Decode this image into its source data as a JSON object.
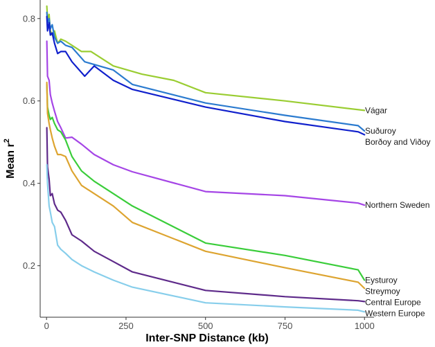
{
  "chart_data": {
    "type": "line",
    "xlabel": "Inter-SNP Distance (kb)",
    "ylabel": "Mean r",
    "ylabel_sup": "2",
    "xlim": [
      -20,
      1030
    ],
    "ylim": [
      0.075,
      0.845
    ],
    "x_ticks": [
      0,
      250,
      500,
      750,
      1000
    ],
    "x_tick_labels": [
      "0",
      "250",
      "500",
      "750",
      "1000"
    ],
    "y_ticks": [
      0.2,
      0.4,
      0.6,
      0.8
    ],
    "y_tick_labels": [
      "0.2",
      "0.4",
      "0.6",
      "0.8"
    ],
    "grid": false,
    "legend": "direct labels at line ends",
    "series": [
      {
        "name": "Vágar",
        "color": "#9acd32",
        "points": [
          [
            1,
            0.83
          ],
          [
            3,
            0.8
          ],
          [
            8,
            0.81
          ],
          [
            12,
            0.77
          ],
          [
            18,
            0.76
          ],
          [
            25,
            0.77
          ],
          [
            35,
            0.74
          ],
          [
            45,
            0.75
          ],
          [
            60,
            0.745
          ],
          [
            80,
            0.735
          ],
          [
            110,
            0.72
          ],
          [
            140,
            0.72
          ],
          [
            210,
            0.685
          ],
          [
            300,
            0.665
          ],
          [
            400,
            0.65
          ],
          [
            500,
            0.62
          ],
          [
            750,
            0.6
          ],
          [
            1000,
            0.577
          ]
        ]
      },
      {
        "name": "Suðuroy",
        "color": "#2b7bcf",
        "points": [
          [
            1,
            0.815
          ],
          [
            3,
            0.79
          ],
          [
            8,
            0.8
          ],
          [
            12,
            0.775
          ],
          [
            18,
            0.785
          ],
          [
            25,
            0.755
          ],
          [
            35,
            0.74
          ],
          [
            45,
            0.745
          ],
          [
            60,
            0.735
          ],
          [
            80,
            0.73
          ],
          [
            120,
            0.695
          ],
          [
            210,
            0.675
          ],
          [
            270,
            0.64
          ],
          [
            500,
            0.595
          ],
          [
            750,
            0.565
          ],
          [
            980,
            0.54
          ],
          [
            1000,
            0.527
          ]
        ]
      },
      {
        "name": "Borðoy and Viðoy",
        "color": "#1020cc",
        "points": [
          [
            1,
            0.805
          ],
          [
            3,
            0.77
          ],
          [
            8,
            0.79
          ],
          [
            12,
            0.76
          ],
          [
            18,
            0.765
          ],
          [
            25,
            0.74
          ],
          [
            35,
            0.715
          ],
          [
            45,
            0.72
          ],
          [
            60,
            0.72
          ],
          [
            80,
            0.695
          ],
          [
            120,
            0.66
          ],
          [
            150,
            0.685
          ],
          [
            210,
            0.65
          ],
          [
            270,
            0.628
          ],
          [
            500,
            0.585
          ],
          [
            750,
            0.55
          ],
          [
            980,
            0.525
          ],
          [
            1000,
            0.518
          ]
        ]
      },
      {
        "name": "Northern Sweden",
        "color": "#a545e6",
        "points": [
          [
            1,
            0.745
          ],
          [
            3,
            0.66
          ],
          [
            8,
            0.65
          ],
          [
            12,
            0.615
          ],
          [
            18,
            0.595
          ],
          [
            25,
            0.575
          ],
          [
            35,
            0.55
          ],
          [
            45,
            0.535
          ],
          [
            60,
            0.51
          ],
          [
            80,
            0.512
          ],
          [
            110,
            0.495
          ],
          [
            150,
            0.47
          ],
          [
            210,
            0.445
          ],
          [
            270,
            0.428
          ],
          [
            500,
            0.38
          ],
          [
            750,
            0.37
          ],
          [
            980,
            0.352
          ],
          [
            1000,
            0.347
          ]
        ]
      },
      {
        "name": "Eysturoy",
        "color": "#3acd3a",
        "points": [
          [
            1,
            0.64
          ],
          [
            3,
            0.585
          ],
          [
            8,
            0.565
          ],
          [
            12,
            0.555
          ],
          [
            18,
            0.56
          ],
          [
            25,
            0.545
          ],
          [
            35,
            0.53
          ],
          [
            45,
            0.525
          ],
          [
            60,
            0.505
          ],
          [
            80,
            0.465
          ],
          [
            110,
            0.43
          ],
          [
            150,
            0.405
          ],
          [
            210,
            0.375
          ],
          [
            270,
            0.345
          ],
          [
            500,
            0.255
          ],
          [
            750,
            0.225
          ],
          [
            980,
            0.19
          ],
          [
            1000,
            0.165
          ]
        ]
      },
      {
        "name": "Streymoy",
        "color": "#dda430",
        "points": [
          [
            1,
            0.645
          ],
          [
            3,
            0.57
          ],
          [
            8,
            0.545
          ],
          [
            12,
            0.53
          ],
          [
            18,
            0.51
          ],
          [
            25,
            0.49
          ],
          [
            35,
            0.47
          ],
          [
            45,
            0.47
          ],
          [
            60,
            0.465
          ],
          [
            80,
            0.43
          ],
          [
            110,
            0.395
          ],
          [
            150,
            0.375
          ],
          [
            210,
            0.345
          ],
          [
            270,
            0.305
          ],
          [
            500,
            0.235
          ],
          [
            750,
            0.195
          ],
          [
            980,
            0.16
          ],
          [
            1000,
            0.145
          ]
        ]
      },
      {
        "name": "Central Europe",
        "color": "#5e2a8a",
        "points": [
          [
            1,
            0.535
          ],
          [
            3,
            0.44
          ],
          [
            8,
            0.41
          ],
          [
            12,
            0.37
          ],
          [
            18,
            0.375
          ],
          [
            25,
            0.35
          ],
          [
            35,
            0.335
          ],
          [
            45,
            0.33
          ],
          [
            60,
            0.31
          ],
          [
            80,
            0.275
          ],
          [
            110,
            0.26
          ],
          [
            150,
            0.235
          ],
          [
            210,
            0.21
          ],
          [
            270,
            0.185
          ],
          [
            500,
            0.14
          ],
          [
            750,
            0.125
          ],
          [
            980,
            0.115
          ],
          [
            1000,
            0.113
          ]
        ]
      },
      {
        "name": "Western Europe",
        "color": "#87ceeb",
        "points": [
          [
            1,
            0.445
          ],
          [
            3,
            0.4
          ],
          [
            8,
            0.345
          ],
          [
            12,
            0.33
          ],
          [
            18,
            0.305
          ],
          [
            25,
            0.295
          ],
          [
            35,
            0.25
          ],
          [
            45,
            0.24
          ],
          [
            60,
            0.23
          ],
          [
            80,
            0.215
          ],
          [
            110,
            0.2
          ],
          [
            150,
            0.185
          ],
          [
            210,
            0.165
          ],
          [
            270,
            0.148
          ],
          [
            500,
            0.11
          ],
          [
            750,
            0.1
          ],
          [
            980,
            0.092
          ],
          [
            1000,
            0.088
          ]
        ]
      }
    ]
  }
}
